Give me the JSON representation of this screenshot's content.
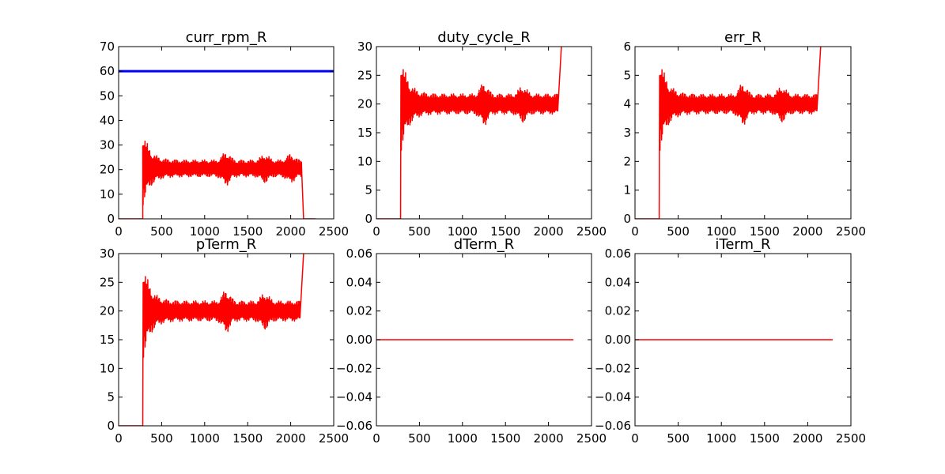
{
  "chart_data": [
    {
      "type": "line",
      "title": "curr_rpm_R",
      "xlim": [
        0,
        2500
      ],
      "ylim": [
        0,
        70
      ],
      "xticks": [
        0,
        500,
        1000,
        1500,
        2000,
        2500
      ],
      "yticks": [
        0,
        10,
        20,
        30,
        40,
        50,
        60,
        70
      ],
      "series": [
        {
          "color": "#0000ff",
          "linewidth": 3,
          "x": [
            0,
            2500
          ],
          "y": [
            60,
            60
          ]
        },
        {
          "color": "#ff0000",
          "linewidth": 1.5,
          "pattern": "oscillation",
          "x_start": 280,
          "x_end": 2130,
          "baseline": 0,
          "pre_end": 280,
          "center": 20.5,
          "amp_start": 16.5,
          "amp_settled": 3.5,
          "decay": 80,
          "bursts": [
            [
              1250,
              3.5
            ],
            [
              1700,
              2.5
            ],
            [
              2000,
              2.5
            ]
          ],
          "x_drop_end": 2150,
          "end_value": 0,
          "x_last": 2290
        }
      ]
    },
    {
      "type": "line",
      "title": "duty_cycle_R",
      "xlim": [
        0,
        2500
      ],
      "ylim": [
        0,
        30
      ],
      "xticks": [
        0,
        500,
        1000,
        1500,
        2000,
        2500
      ],
      "yticks": [
        0,
        5,
        10,
        15,
        20,
        25,
        30
      ],
      "series": [
        {
          "color": "#ff0000",
          "linewidth": 1.5,
          "pattern": "oscillation",
          "x_start": 285,
          "x_end": 2110,
          "baseline": 0,
          "pre_end": 280,
          "center": 20,
          "amp_start": 9,
          "amp_settled": 1.8,
          "decay": 80,
          "bursts": [
            [
              1250,
              2
            ],
            [
              1700,
              1.5
            ]
          ],
          "x_drop_end": 2150,
          "end_value": 30,
          "x_last": 2150
        }
      ]
    },
    {
      "type": "line",
      "title": "err_R",
      "xlim": [
        0,
        2500
      ],
      "ylim": [
        0,
        6
      ],
      "xticks": [
        0,
        500,
        1000,
        1500,
        2000,
        2500
      ],
      "yticks": [
        0,
        1,
        2,
        3,
        4,
        5,
        6
      ],
      "series": [
        {
          "color": "#ff0000",
          "linewidth": 1.5,
          "pattern": "oscillation",
          "x_start": 285,
          "x_end": 2110,
          "baseline": 0,
          "pre_end": 280,
          "center": 4,
          "amp_start": 1.8,
          "amp_settled": 0.35,
          "decay": 80,
          "bursts": [
            [
              1250,
              0.4
            ],
            [
              1700,
              0.3
            ]
          ],
          "x_drop_end": 2150,
          "end_value": 6,
          "x_last": 2150
        }
      ]
    },
    {
      "type": "line",
      "title": "pTerm_R",
      "xlim": [
        0,
        2500
      ],
      "ylim": [
        0,
        30
      ],
      "xticks": [
        0,
        500,
        1000,
        1500,
        2000,
        2500
      ],
      "yticks": [
        0,
        5,
        10,
        15,
        20,
        25,
        30
      ],
      "series": [
        {
          "color": "#ff0000",
          "linewidth": 1.5,
          "pattern": "oscillation",
          "x_start": 285,
          "x_end": 2110,
          "baseline": 0,
          "pre_end": 280,
          "center": 20,
          "amp_start": 9,
          "amp_settled": 1.8,
          "decay": 80,
          "bursts": [
            [
              1250,
              2
            ],
            [
              1700,
              1.5
            ]
          ],
          "x_drop_end": 2150,
          "end_value": 30,
          "x_last": 2150
        }
      ]
    },
    {
      "type": "line",
      "title": "dTerm_R",
      "xlim": [
        0,
        2500
      ],
      "ylim": [
        -0.06,
        0.06
      ],
      "xticks": [
        0,
        500,
        1000,
        1500,
        2000,
        2500
      ],
      "yticks": [
        -0.06,
        -0.04,
        -0.02,
        0.0,
        0.02,
        0.04,
        0.06
      ],
      "ytick_labels": [
        "−0.06",
        "−0.04",
        "−0.02",
        "0.00",
        "0.02",
        "0.04",
        "0.06"
      ],
      "series": [
        {
          "color": "#ff0000",
          "linewidth": 1.5,
          "x": [
            0,
            2290
          ],
          "y": [
            0,
            0
          ]
        }
      ]
    },
    {
      "type": "line",
      "title": "iTerm_R",
      "xlim": [
        0,
        2500
      ],
      "ylim": [
        -0.06,
        0.06
      ],
      "xticks": [
        0,
        500,
        1000,
        1500,
        2000,
        2500
      ],
      "yticks": [
        -0.06,
        -0.04,
        -0.02,
        0.0,
        0.02,
        0.04,
        0.06
      ],
      "ytick_labels": [
        "−0.06",
        "−0.04",
        "−0.02",
        "0.00",
        "0.02",
        "0.04",
        "0.06"
      ],
      "series": [
        {
          "color": "#ff0000",
          "linewidth": 1.5,
          "x": [
            0,
            2290
          ],
          "y": [
            0,
            0
          ]
        }
      ]
    }
  ]
}
